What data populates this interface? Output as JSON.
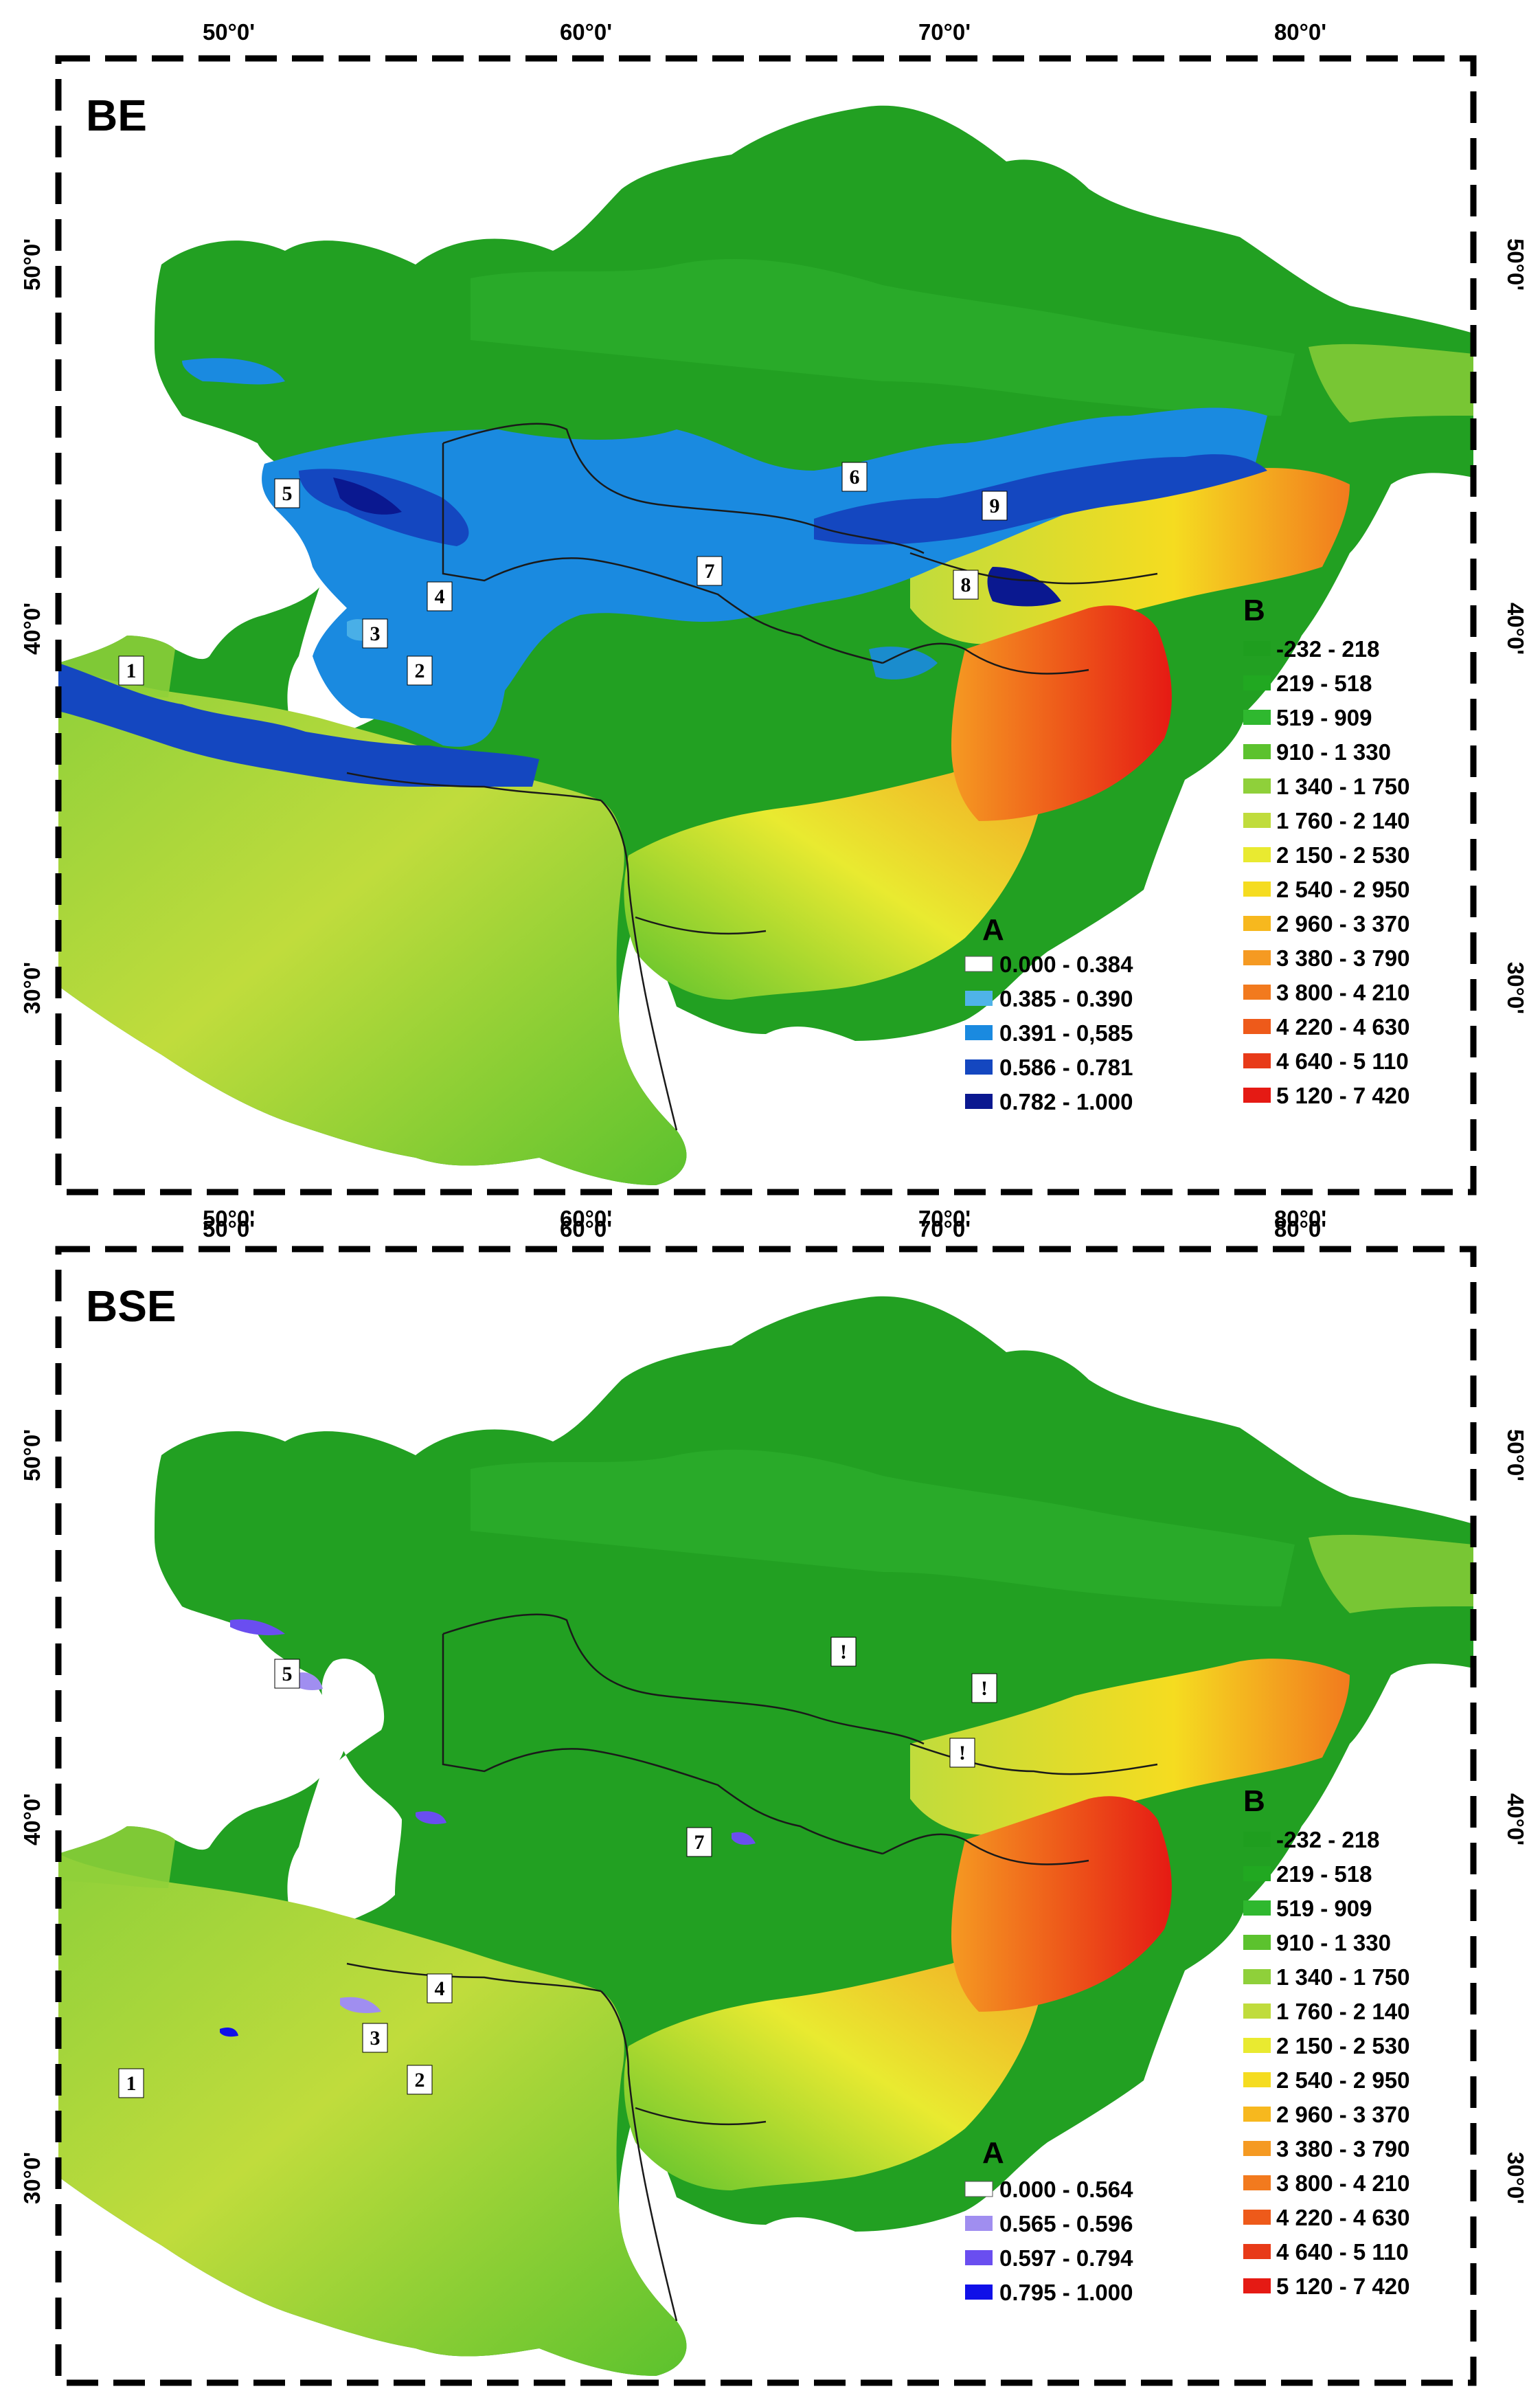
{
  "panels": [
    {
      "title": "BE",
      "x_ticks": [
        "50°0'",
        "60°0'",
        "70°0'",
        "80°0'"
      ],
      "y_ticks": [
        "50°0'",
        "40°0'",
        "30°0'"
      ],
      "legend_a": {
        "heading": "A",
        "items": [
          {
            "label": "0.000 - 0.384",
            "color": "#ffffff"
          },
          {
            "label": "0.385 - 0.390",
            "color": "#4fb3e8"
          },
          {
            "label": "0.391 - 0,585",
            "color": "#1a8ae0"
          },
          {
            "label": "0.586 - 0.781",
            "color": "#1447c0"
          },
          {
            "label": "0.782 - 1.000",
            "color": "#0a1890"
          }
        ]
      },
      "legend_b": {
        "heading": "B",
        "items": [
          {
            "label": "-232 - 218",
            "color": "#1f9e1f"
          },
          {
            "label": "219 - 518",
            "color": "#21a821"
          },
          {
            "label": "519 - 909",
            "color": "#2fb82f"
          },
          {
            "label": "910 - 1 330",
            "color": "#5cc22e"
          },
          {
            "label": "1 340 - 1 750",
            "color": "#8fd03a"
          },
          {
            "label": "1 760 - 2 140",
            "color": "#c0dc3c"
          },
          {
            "label": "2 150 - 2 530",
            "color": "#e9ea30"
          },
          {
            "label": "2 540 - 2 950",
            "color": "#f5dc20"
          },
          {
            "label": "2 960 - 3 370",
            "color": "#f7b81e"
          },
          {
            "label": "3 380 - 3 790",
            "color": "#f59a22"
          },
          {
            "label": "3 800 - 4 210",
            "color": "#f27a1e"
          },
          {
            "label": "4 220 - 4 630",
            "color": "#ee5a1a"
          },
          {
            "label": "4 640 - 5 110",
            "color": "#e83a18"
          },
          {
            "label": "5 120 - 7 420",
            "color": "#e51a14"
          }
        ]
      },
      "markers": [
        "1",
        "2",
        "3",
        "4",
        "5",
        "6",
        "7",
        "8",
        "9"
      ]
    },
    {
      "title": "BSE",
      "x_ticks": [
        "50°0'",
        "60°0'",
        "70°0'",
        "80°0'"
      ],
      "y_ticks": [
        "50°0'",
        "40°0'",
        "30°0'"
      ],
      "legend_a": {
        "heading": "A",
        "items": [
          {
            "label": "0.000 - 0.564",
            "color": "#ffffff"
          },
          {
            "label": "0.565 - 0.596",
            "color": "#a08ef0"
          },
          {
            "label": "0.597 - 0.794",
            "color": "#6a4ef0"
          },
          {
            "label": "0.795 - 1.000",
            "color": "#1010e8"
          }
        ]
      },
      "legend_b": {
        "heading": "B",
        "items": [
          {
            "label": "-232 - 218",
            "color": "#1f9e1f"
          },
          {
            "label": "219 - 518",
            "color": "#21a821"
          },
          {
            "label": "519 - 909",
            "color": "#2fb82f"
          },
          {
            "label": "910 - 1 330",
            "color": "#5cc22e"
          },
          {
            "label": "1 340 - 1 750",
            "color": "#8fd03a"
          },
          {
            "label": "1 760 - 2 140",
            "color": "#c0dc3c"
          },
          {
            "label": "2 150 - 2 530",
            "color": "#e9ea30"
          },
          {
            "label": "2 540 - 2 950",
            "color": "#f5dc20"
          },
          {
            "label": "2 960 - 3 370",
            "color": "#f7b81e"
          },
          {
            "label": "3 380 - 3 790",
            "color": "#f59a22"
          },
          {
            "label": "3 800 - 4 210",
            "color": "#f27a1e"
          },
          {
            "label": "4 220 - 4 630",
            "color": "#ee5a1a"
          },
          {
            "label": "4 640 - 5 110",
            "color": "#e83a18"
          },
          {
            "label": "5 120 - 7 420",
            "color": "#e51a14"
          }
        ]
      },
      "markers": [
        "1",
        "2",
        "3",
        "4",
        "5",
        "7",
        "!",
        "!",
        "!"
      ]
    }
  ],
  "colors": {
    "land": "#22a022",
    "steppe": "#2cae2c",
    "highland_low": "#8fd03a",
    "highland_mid": "#e9ea30",
    "mountain_orange": "#f59a22",
    "mountain_red": "#e51a14",
    "border": "#1a1a1a"
  }
}
